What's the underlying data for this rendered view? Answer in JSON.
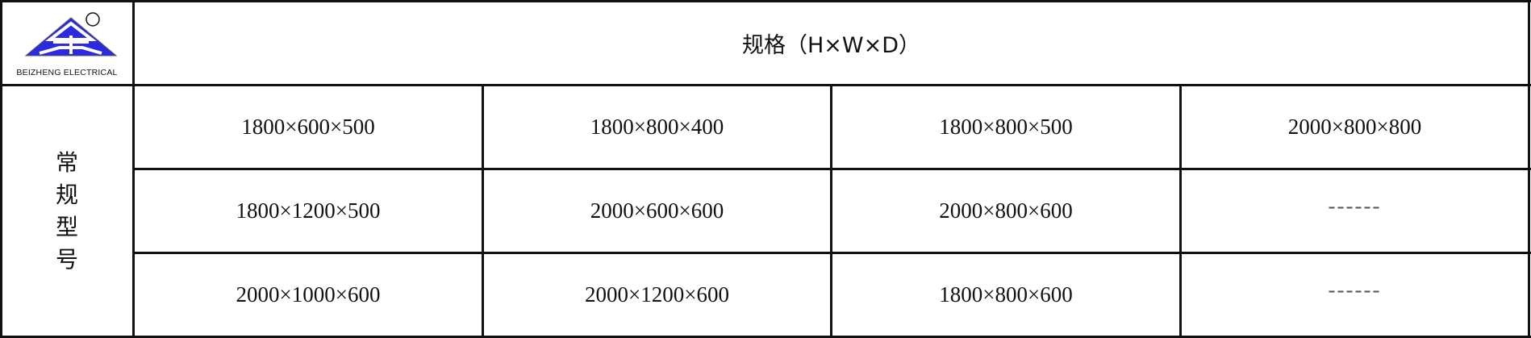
{
  "logo": {
    "brand_text": "BEIZHENG ELECTRICAL",
    "registered_mark": "®",
    "color": "#2222dd"
  },
  "header": {
    "title": "规格（H×W×D）"
  },
  "side_label": [
    "常",
    "规",
    "型",
    "号"
  ],
  "rows": [
    [
      "1800×600×500",
      "1800×800×400",
      "1800×800×500",
      "2000×800×800"
    ],
    [
      "1800×1200×500",
      "2000×600×600",
      "2000×800×600",
      "------"
    ],
    [
      "2000×1000×600",
      "2000×1200×600",
      "1800×800×600",
      "------"
    ]
  ]
}
